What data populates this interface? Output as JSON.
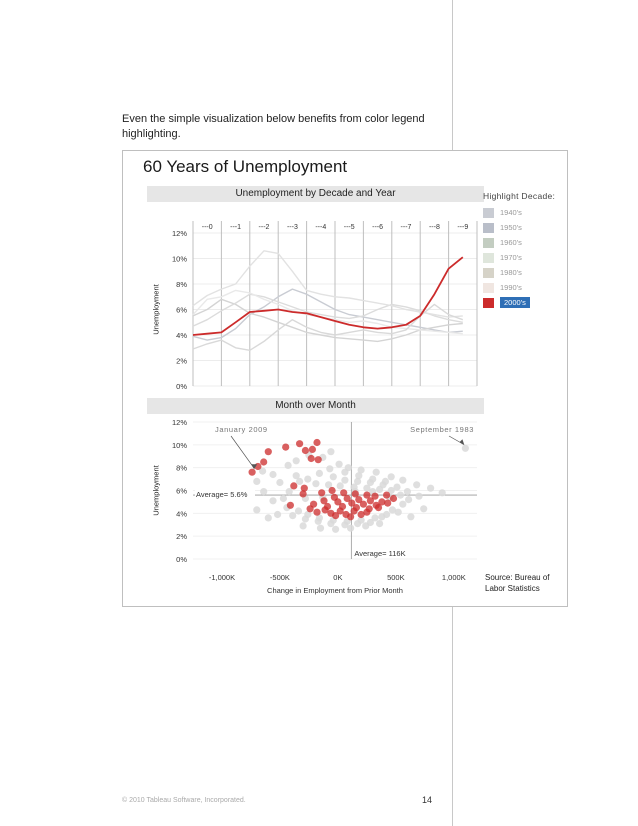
{
  "intro_text": "Even the simple visualization below benefits from color legend highlighting.",
  "dashboard_title": "60 Years of Unemployment",
  "top_chart": {
    "title": "Unemployment by Decade and Year",
    "ylabel": "Unemployment",
    "year_labels": [
      "---0",
      "---1",
      "---2",
      "---3",
      "---4",
      "---5",
      "---6",
      "---7",
      "---8",
      "---9"
    ],
    "ytick_labels": [
      "0%",
      "2%",
      "4%",
      "6%",
      "8%",
      "10%",
      "12%"
    ]
  },
  "bottom_chart": {
    "title": "Month over Month",
    "ylabel": "Unemployment",
    "xlabel": "Change in Employment from Prior Month",
    "xtick_labels": [
      "-1,000K",
      "-500K",
      "0K",
      "500K",
      "1,000K"
    ],
    "ytick_labels": [
      "0%",
      "2%",
      "4%",
      "6%",
      "8%",
      "10%",
      "12%"
    ],
    "annotation_january": "January 2009",
    "annotation_september": "September 1983",
    "average_y_label": "Average= 5.6%",
    "average_x_label": "Average= 116K"
  },
  "legend": {
    "title": "Highlight Decade:",
    "items": [
      {
        "label": "1940's",
        "color": "#c9ccd3"
      },
      {
        "label": "1950's",
        "color": "#b9bec9"
      },
      {
        "label": "1960's",
        "color": "#c3cdc1"
      },
      {
        "label": "1970's",
        "color": "#dfe6dc"
      },
      {
        "label": "1980's",
        "color": "#d6d3c8"
      },
      {
        "label": "1990's",
        "color": "#f0e6e1"
      },
      {
        "label": "2000's",
        "color": "#cc2b2b"
      }
    ],
    "active": "2000's"
  },
  "source_text_1": "Source: Bureau of",
  "source_text_2": "Labor Statistics",
  "footer_text": "© 2010 Tableau Software, Incorporated.",
  "page_number": "14",
  "colors": {
    "highlight": "#cc2b2b",
    "grey_line": "#d4d4d4",
    "grey_dot": "#d9d9d9",
    "panel_header": "#e6e6e6"
  },
  "chart_data": [
    {
      "type": "line",
      "title": "Unemployment by Decade and Year",
      "ylabel": "Unemployment",
      "ylim": [
        0,
        12
      ],
      "x": [
        0,
        0.5,
        1,
        1.5,
        2,
        2.5,
        3,
        3.5,
        4,
        4.5,
        5,
        5.5,
        6,
        6.5,
        7,
        7.5,
        8,
        8.5,
        9,
        9.5
      ],
      "series": [
        {
          "name": "2000's",
          "color": "#cc2b2b",
          "values": [
            4.0,
            4.1,
            4.2,
            5.0,
            5.8,
            5.9,
            6.0,
            5.8,
            5.7,
            5.4,
            5.1,
            4.8,
            4.6,
            4.5,
            4.6,
            4.8,
            5.5,
            7.2,
            9.2,
            10.1
          ]
        },
        {
          "color": "#c9ccd3",
          "values": [
            3.9,
            3.6,
            3.8,
            4.5,
            5.6,
            6.2,
            7.0,
            7.6,
            7.2,
            6.6,
            6.0,
            5.6,
            5.4,
            5.2,
            5.0,
            4.8,
            4.6,
            4.4,
            4.2,
            4.3
          ]
        },
        {
          "color": "#d4d4d4",
          "values": [
            5.5,
            6.0,
            6.8,
            6.4,
            5.7,
            5.4,
            5.0,
            4.6,
            4.2,
            4.0,
            3.8,
            3.7,
            3.6,
            3.5,
            3.7,
            4.0,
            4.4,
            4.6,
            4.8,
            4.9
          ]
        },
        {
          "color": "#dcdcdc",
          "values": [
            4.7,
            5.2,
            5.9,
            6.5,
            7.2,
            7.0,
            6.6,
            6.2,
            5.8,
            5.6,
            5.4,
            5.3,
            5.5,
            6.0,
            6.4,
            6.2,
            5.9,
            5.5,
            5.2,
            5.0
          ]
        },
        {
          "color": "#e2e2e2",
          "values": [
            6.3,
            7.1,
            7.6,
            8.0,
            9.4,
            10.6,
            10.4,
            9.0,
            7.5,
            7.2,
            7.0,
            6.9,
            6.7,
            6.5,
            6.3,
            6.0,
            5.8,
            5.6,
            5.4,
            5.5
          ]
        },
        {
          "color": "#e9e9e9",
          "values": [
            5.6,
            6.8,
            7.0,
            7.5,
            7.3,
            6.8,
            6.4,
            5.9,
            5.6,
            5.4,
            5.2,
            5.0,
            5.1,
            4.9,
            4.6,
            4.5,
            4.4,
            4.3,
            4.2,
            4.1
          ]
        },
        {
          "color": "#d9d9d9",
          "values": [
            2.9,
            3.3,
            3.6,
            3.0,
            2.8,
            3.5,
            4.4,
            5.2,
            4.6,
            4.2,
            4.0,
            4.2,
            4.4,
            4.2,
            4.1,
            4.4,
            5.5,
            6.4,
            5.6,
            5.2
          ]
        }
      ]
    },
    {
      "type": "scatter",
      "title": "Month over Month",
      "xlabel": "Change in Employment from Prior Month",
      "ylabel": "Unemployment",
      "xlim": [
        -1250,
        1200
      ],
      "ylim": [
        0,
        12
      ],
      "average_x": 116,
      "average_y": 5.6,
      "series": [
        {
          "name": "2000's",
          "color": "#cc2b2b",
          "points": [
            [
              -740,
              7.6
            ],
            [
              -690,
              8.1
            ],
            [
              -640,
              8.5
            ],
            [
              -600,
              9.4
            ],
            [
              -450,
              9.8
            ],
            [
              -330,
              10.1
            ],
            [
              -280,
              9.5
            ],
            [
              -220,
              9.6
            ],
            [
              -180,
              10.2
            ],
            [
              -230,
              8.8
            ],
            [
              -170,
              8.7
            ],
            [
              -380,
              6.4
            ],
            [
              -290,
              6.2
            ],
            [
              -140,
              5.8
            ],
            [
              -50,
              6.0
            ],
            [
              50,
              5.8
            ],
            [
              150,
              5.7
            ],
            [
              250,
              5.6
            ],
            [
              320,
              5.5
            ],
            [
              420,
              5.6
            ],
            [
              -30,
              5.4
            ],
            [
              80,
              5.3
            ],
            [
              180,
              5.2
            ],
            [
              280,
              5.1
            ],
            [
              380,
              5.0
            ],
            [
              -120,
              5.1
            ],
            [
              0,
              5.0
            ],
            [
              120,
              4.9
            ],
            [
              220,
              4.8
            ],
            [
              330,
              4.7
            ],
            [
              -210,
              4.8
            ],
            [
              -90,
              4.6
            ],
            [
              40,
              4.6
            ],
            [
              160,
              4.5
            ],
            [
              270,
              4.4
            ],
            [
              -240,
              4.4
            ],
            [
              -110,
              4.3
            ],
            [
              20,
              4.2
            ],
            [
              140,
              4.2
            ],
            [
              250,
              4.1
            ],
            [
              -60,
              4.0
            ],
            [
              70,
              3.9
            ],
            [
              200,
              3.9
            ],
            [
              -180,
              4.1
            ],
            [
              -20,
              3.8
            ],
            [
              110,
              3.7
            ],
            [
              350,
              4.5
            ],
            [
              430,
              4.9
            ],
            [
              480,
              5.3
            ],
            [
              -300,
              5.7
            ],
            [
              -410,
              4.7
            ]
          ]
        },
        {
          "color": "#d9d9d9",
          "points": [
            [
              1100,
              9.7
            ],
            [
              -650,
              7.7
            ],
            [
              -560,
              7.4
            ],
            [
              -430,
              8.2
            ],
            [
              -360,
              8.6
            ],
            [
              -250,
              9.1
            ],
            [
              -130,
              8.9
            ],
            [
              -60,
              9.4
            ],
            [
              10,
              8.3
            ],
            [
              90,
              8.0
            ],
            [
              200,
              7.8
            ],
            [
              330,
              7.6
            ],
            [
              460,
              7.2
            ],
            [
              560,
              6.9
            ],
            [
              680,
              6.5
            ],
            [
              800,
              6.2
            ],
            [
              900,
              5.8
            ],
            [
              740,
              4.4
            ],
            [
              630,
              3.7
            ],
            [
              -820,
              5.6
            ],
            [
              -700,
              4.3
            ],
            [
              -600,
              3.6
            ],
            [
              -520,
              3.9
            ],
            [
              -470,
              5.3
            ],
            [
              -500,
              6.7
            ],
            [
              -360,
              7.3
            ],
            [
              -260,
              7.0
            ],
            [
              -160,
              7.5
            ],
            [
              -40,
              7.2
            ],
            [
              60,
              6.9
            ],
            [
              170,
              6.8
            ],
            [
              280,
              6.7
            ],
            [
              390,
              6.5
            ],
            [
              510,
              6.3
            ],
            [
              600,
              5.9
            ],
            [
              700,
              5.5
            ],
            [
              560,
              4.8
            ],
            [
              470,
              4.3
            ],
            [
              380,
              3.7
            ],
            [
              280,
              3.2
            ],
            [
              170,
              3.1
            ],
            [
              60,
              3.0
            ],
            [
              -60,
              3.1
            ],
            [
              -170,
              3.3
            ],
            [
              -280,
              3.5
            ],
            [
              -390,
              3.8
            ],
            [
              -300,
              2.9
            ],
            [
              -150,
              2.7
            ],
            [
              -20,
              2.6
            ],
            [
              110,
              2.7
            ],
            [
              240,
              2.9
            ],
            [
              360,
              3.1
            ],
            [
              -560,
              5.1
            ],
            [
              -640,
              5.9
            ],
            [
              -700,
              6.8
            ],
            [
              -330,
              6.8
            ],
            [
              -190,
              6.6
            ],
            [
              -80,
              6.5
            ],
            [
              20,
              6.4
            ],
            [
              140,
              6.3
            ],
            [
              250,
              6.2
            ],
            [
              360,
              6.1
            ],
            [
              460,
              6.0
            ],
            [
              540,
              5.6
            ],
            [
              610,
              5.2
            ],
            [
              520,
              4.1
            ],
            [
              420,
              3.9
            ],
            [
              320,
              3.6
            ],
            [
              200,
              3.4
            ],
            [
              80,
              3.3
            ],
            [
              -40,
              3.4
            ],
            [
              -160,
              3.6
            ],
            [
              -260,
              3.9
            ],
            [
              -340,
              4.2
            ],
            [
              -440,
              4.5
            ],
            [
              -420,
              5.9
            ],
            [
              -280,
              5.3
            ],
            [
              -130,
              5.4
            ],
            [
              150,
              5.9
            ],
            [
              300,
              5.9
            ],
            [
              450,
              5.4
            ],
            [
              -70,
              7.9
            ],
            [
              60,
              7.6
            ],
            [
              180,
              7.3
            ],
            [
              300,
              7.0
            ],
            [
              410,
              6.8
            ]
          ]
        }
      ]
    }
  ]
}
